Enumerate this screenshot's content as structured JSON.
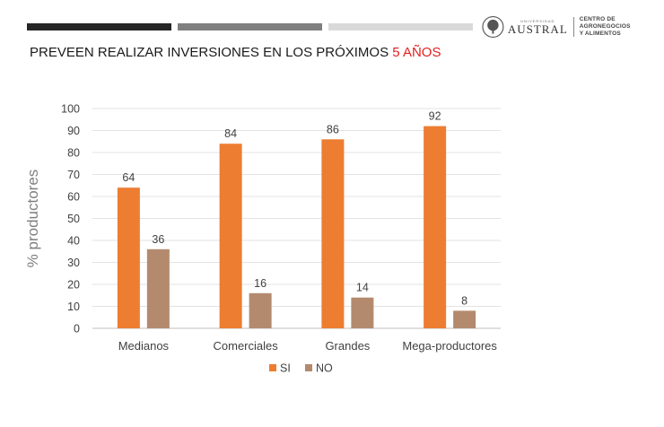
{
  "header": {
    "title_main": "PREVEEN REALIZAR INVERSIONES EN LOS PRÓXIMOS ",
    "title_highlight": "5 AÑOS",
    "highlight_color": "#e02020"
  },
  "logo": {
    "university_small": "UNIVERSIDAD",
    "university": "AUSTRAL",
    "center_line1": "CENTRO DE AGRONEGOCIOS",
    "center_line2": "Y ALIMENTOS"
  },
  "chart_data": {
    "type": "bar",
    "categories": [
      "Medianos",
      "Comerciales",
      "Grandes",
      "Mega-productores"
    ],
    "series": [
      {
        "name": "SI",
        "values": [
          64,
          84,
          86,
          92
        ],
        "color": "#ed7d31"
      },
      {
        "name": "NO",
        "values": [
          36,
          16,
          14,
          8
        ],
        "color": "#b48a6e"
      }
    ],
    "ylabel": "% productores",
    "ylim": [
      0,
      100
    ],
    "yticks": [
      0,
      10,
      20,
      30,
      40,
      50,
      60,
      70,
      80,
      90,
      100
    ],
    "grid": true,
    "legend": "bottom"
  }
}
